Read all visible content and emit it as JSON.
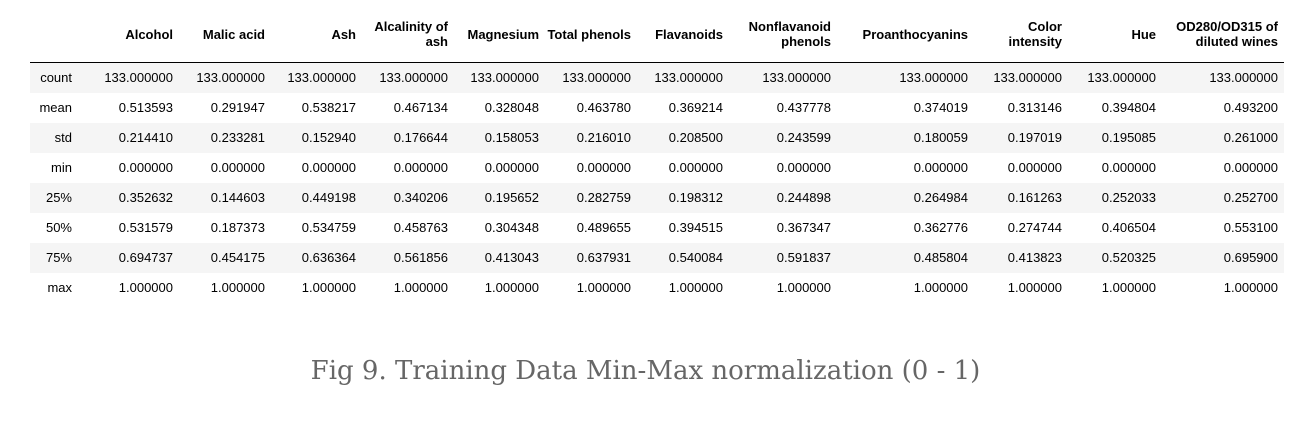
{
  "caption": "Fig 9. Training Data Min-Max normalization (0 - 1)",
  "table": {
    "columns": [
      "Alcohol",
      "Malic acid",
      "Ash",
      "Alcalinity of ash",
      "Magnesium",
      "Total phenols",
      "Flavanoids",
      "Nonflavanoid phenols",
      "Proanthocyanins",
      "Color intensity",
      "Hue",
      "OD280/OD315 of diluted wines"
    ],
    "rows": [
      {
        "label": "count",
        "values": [
          "133.000000",
          "133.000000",
          "133.000000",
          "133.000000",
          "133.000000",
          "133.000000",
          "133.000000",
          "133.000000",
          "133.000000",
          "133.000000",
          "133.000000",
          "133.000000"
        ]
      },
      {
        "label": "mean",
        "values": [
          "0.513593",
          "0.291947",
          "0.538217",
          "0.467134",
          "0.328048",
          "0.463780",
          "0.369214",
          "0.437778",
          "0.374019",
          "0.313146",
          "0.394804",
          "0.493200"
        ]
      },
      {
        "label": "std",
        "values": [
          "0.214410",
          "0.233281",
          "0.152940",
          "0.176644",
          "0.158053",
          "0.216010",
          "0.208500",
          "0.243599",
          "0.180059",
          "0.197019",
          "0.195085",
          "0.261000"
        ]
      },
      {
        "label": "min",
        "values": [
          "0.000000",
          "0.000000",
          "0.000000",
          "0.000000",
          "0.000000",
          "0.000000",
          "0.000000",
          "0.000000",
          "0.000000",
          "0.000000",
          "0.000000",
          "0.000000"
        ]
      },
      {
        "label": "25%",
        "values": [
          "0.352632",
          "0.144603",
          "0.449198",
          "0.340206",
          "0.195652",
          "0.282759",
          "0.198312",
          "0.244898",
          "0.264984",
          "0.161263",
          "0.252033",
          "0.252700"
        ]
      },
      {
        "label": "50%",
        "values": [
          "0.531579",
          "0.187373",
          "0.534759",
          "0.458763",
          "0.304348",
          "0.489655",
          "0.394515",
          "0.367347",
          "0.362776",
          "0.274744",
          "0.406504",
          "0.553100"
        ]
      },
      {
        "label": "75%",
        "values": [
          "0.694737",
          "0.454175",
          "0.636364",
          "0.561856",
          "0.413043",
          "0.637931",
          "0.540084",
          "0.591837",
          "0.485804",
          "0.413823",
          "0.520325",
          "0.695900"
        ]
      },
      {
        "label": "max",
        "values": [
          "1.000000",
          "1.000000",
          "1.000000",
          "1.000000",
          "1.000000",
          "1.000000",
          "1.000000",
          "1.000000",
          "1.000000",
          "1.000000",
          "1.000000",
          "1.000000"
        ]
      }
    ]
  }
}
